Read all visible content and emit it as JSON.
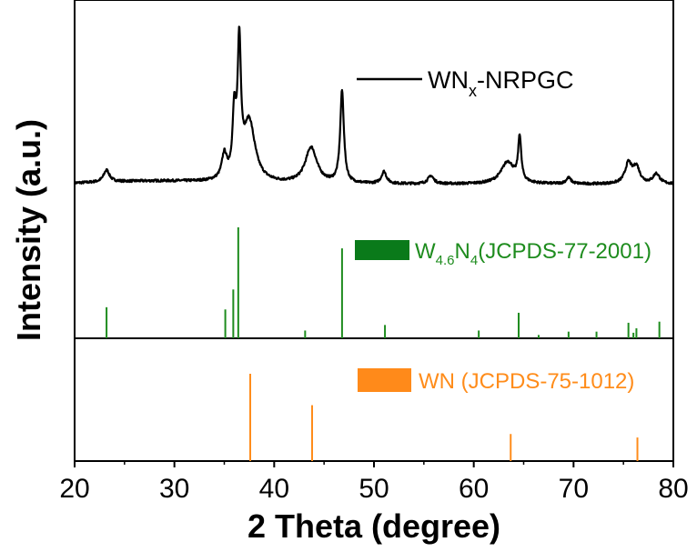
{
  "chart_data": {
    "type": "line",
    "xlabel": "2 Theta (degree)",
    "ylabel": "Intensity (a.u.)",
    "xlim": [
      20,
      80
    ],
    "x_ticks": [
      20,
      30,
      40,
      50,
      60,
      70,
      80
    ],
    "grid": false,
    "series": [
      {
        "name_main": "WN",
        "name_sub": "x",
        "name_rest": "-NRPGC",
        "color": "#000000",
        "baseline": 0.17,
        "noise": 0.012,
        "peaks": [
          {
            "pos": 23.2,
            "h": 0.06,
            "w": 0.35
          },
          {
            "pos": 35.0,
            "h": 0.12,
            "w": 0.3
          },
          {
            "pos": 36.0,
            "h": 0.3,
            "w": 0.2
          },
          {
            "pos": 36.5,
            "h": 0.64,
            "w": 0.2
          },
          {
            "pos": 37.5,
            "h": 0.3,
            "w": 0.7
          },
          {
            "pos": 43.7,
            "h": 0.18,
            "w": 0.7
          },
          {
            "pos": 46.8,
            "h": 0.46,
            "w": 0.22
          },
          {
            "pos": 51.0,
            "h": 0.06,
            "w": 0.3
          },
          {
            "pos": 55.7,
            "h": 0.04,
            "w": 0.35
          },
          {
            "pos": 63.4,
            "h": 0.11,
            "w": 0.8
          },
          {
            "pos": 64.6,
            "h": 0.22,
            "w": 0.18
          },
          {
            "pos": 69.5,
            "h": 0.03,
            "w": 0.3
          },
          {
            "pos": 75.5,
            "h": 0.1,
            "w": 0.4
          },
          {
            "pos": 76.3,
            "h": 0.08,
            "w": 0.4
          },
          {
            "pos": 78.3,
            "h": 0.05,
            "w": 0.4
          }
        ]
      }
    ],
    "references": [
      {
        "name_main": "W",
        "name_sub1": "4.6",
        "name_mid": "N",
        "name_sub2": "4",
        "name_rest": "(JCPDS-77-2001)",
        "color": "#1e8c1e",
        "swatch_color": "#0a7a1a",
        "panel": "upper",
        "lines": [
          {
            "x": 23.2,
            "i": 28
          },
          {
            "x": 35.1,
            "i": 26
          },
          {
            "x": 35.9,
            "i": 44
          },
          {
            "x": 36.4,
            "i": 100
          },
          {
            "x": 43.1,
            "i": 7
          },
          {
            "x": 46.8,
            "i": 81
          },
          {
            "x": 51.1,
            "i": 12
          },
          {
            "x": 60.5,
            "i": 7
          },
          {
            "x": 64.5,
            "i": 23
          },
          {
            "x": 66.5,
            "i": 3
          },
          {
            "x": 69.5,
            "i": 6
          },
          {
            "x": 72.3,
            "i": 6
          },
          {
            "x": 75.5,
            "i": 14
          },
          {
            "x": 76.0,
            "i": 5
          },
          {
            "x": 76.3,
            "i": 9
          },
          {
            "x": 78.6,
            "i": 15
          }
        ]
      },
      {
        "name": "WN (JCPDS-75-1012)",
        "color": "#ff8c1a",
        "swatch_color": "#ff8a1a",
        "panel": "lower",
        "lines": [
          {
            "x": 37.6,
            "i": 100
          },
          {
            "x": 43.8,
            "i": 64
          },
          {
            "x": 63.7,
            "i": 31
          },
          {
            "x": 76.4,
            "i": 27
          }
        ]
      }
    ],
    "legend_placement": "top-right"
  }
}
